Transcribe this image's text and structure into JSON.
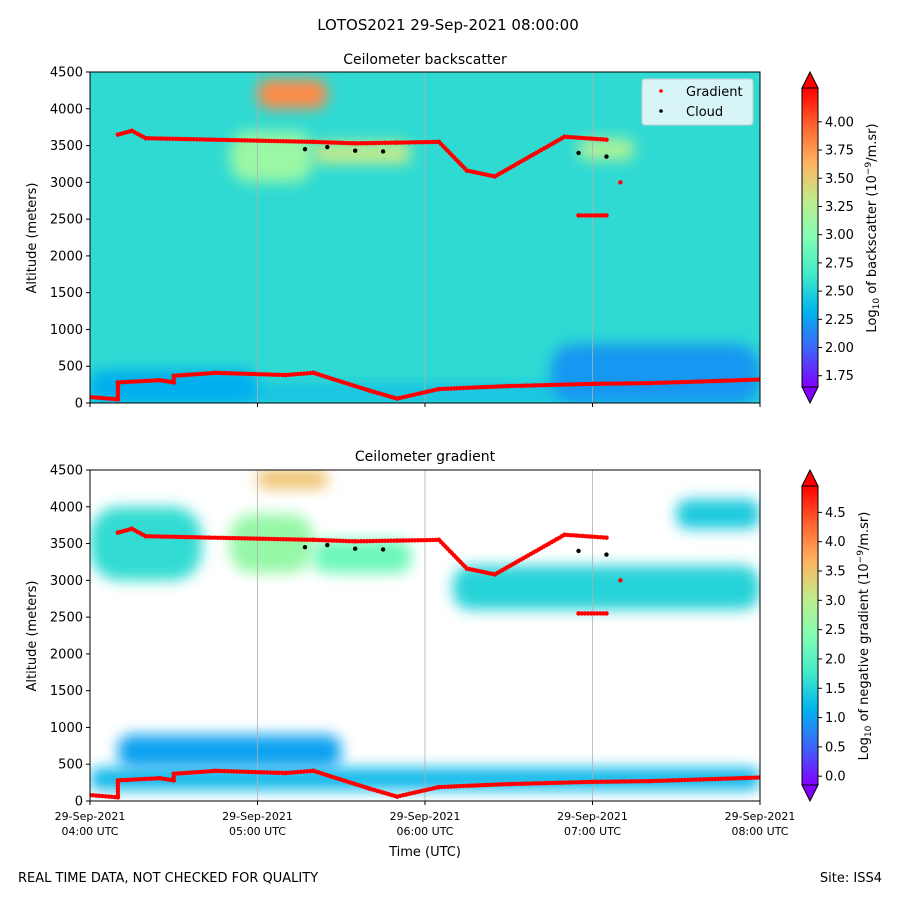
{
  "suptitle": "LOTOS2021 29-Sep-2021 08:00:00",
  "footer_left": "REAL TIME DATA, NOT CHECKED FOR QUALITY",
  "footer_right": "Site: ISS4",
  "colormap": [
    "#8000ff",
    "#4062fa",
    "#01b2ee",
    "#41eac8",
    "#81feb4",
    "#c1eb8c",
    "#ffb360",
    "#ff6230",
    "#ff0000"
  ],
  "chart_data": [
    {
      "type": "heatmap",
      "title": "Ceilometer backscatter",
      "ylabel": "Altitude (meters)",
      "xlabel": "",
      "ylim": [
        0,
        4500
      ],
      "yticks": [
        "0",
        "500",
        "1000",
        "1500",
        "2000",
        "2500",
        "3000",
        "3500",
        "4000",
        "4500"
      ],
      "x_range": [
        "29-Sep-2021 04:00 UTC",
        "29-Sep-2021 08:00 UTC"
      ],
      "vertical_gridlines_at": [
        "05:00",
        "06:00",
        "07:00"
      ],
      "colorbar": {
        "label": "Log10 of backscatter (10^-9/m.sr)",
        "range": [
          1.65,
          4.3
        ],
        "ticks": [
          "1.75",
          "2.00",
          "2.25",
          "2.50",
          "2.75",
          "3.00",
          "3.25",
          "3.50",
          "3.75",
          "4.00"
        ]
      },
      "legend": {
        "placement": "top-right",
        "entries": [
          "Gradient",
          "Cloud"
        ]
      },
      "background_level": 2.55,
      "features": [
        {
          "t_start": "04:00",
          "t_end": "08:00",
          "alt_low": 0,
          "alt_high": 250,
          "value": 2.4
        },
        {
          "t_start": "06:45",
          "t_end": "08:00",
          "alt_low": 0,
          "alt_high": 800,
          "value": 2.2
        },
        {
          "t_start": "04:00",
          "t_end": "05:00",
          "alt_low": 0,
          "alt_high": 450,
          "value": 2.3
        },
        {
          "t_start": "04:50",
          "t_end": "05:20",
          "alt_low": 3000,
          "alt_high": 3700,
          "value": 3.1
        },
        {
          "t_start": "05:00",
          "t_end": "05:25",
          "alt_low": 4000,
          "alt_high": 4400,
          "value": 3.8
        },
        {
          "t_start": "05:20",
          "t_end": "05:55",
          "alt_low": 3250,
          "alt_high": 3550,
          "value": 3.3
        },
        {
          "t_start": "06:55",
          "t_end": "07:15",
          "alt_low": 3300,
          "alt_high": 3600,
          "value": 3.2
        }
      ],
      "gradient_layers": [
        {
          "name": "Gradient",
          "points": [
            [
              "04:00",
              80
            ],
            [
              "04:10",
              50
            ],
            [
              "04:10",
              280
            ],
            [
              "04:25",
              310
            ],
            [
              "04:30",
              280
            ],
            [
              "04:30",
              370
            ],
            [
              "04:45",
              410
            ],
            [
              "05:10",
              380
            ],
            [
              "05:20",
              410
            ],
            [
              "05:40",
              170
            ],
            [
              "05:50",
              60
            ],
            [
              "06:05",
              190
            ],
            [
              "06:30",
              230
            ],
            [
              "07:00",
              260
            ],
            [
              "07:20",
              270
            ],
            [
              "07:45",
              300
            ],
            [
              "08:00",
              320
            ]
          ]
        },
        {
          "name": "Gradient",
          "points": [
            [
              "04:10",
              3650
            ],
            [
              "04:15",
              3700
            ],
            [
              "04:20",
              3600
            ],
            [
              "05:20",
              3550
            ],
            [
              "05:35",
              3530
            ],
            [
              "05:50",
              3540
            ],
            [
              "06:05",
              3550
            ],
            [
              "06:15",
              3160
            ],
            [
              "06:25",
              3080
            ],
            [
              "06:50",
              3620
            ],
            [
              "07:05",
              3580
            ],
            [
              "07:10",
              3000
            ],
            [
              "06:55",
              2550
            ],
            [
              "07:05",
              2550
            ]
          ]
        }
      ],
      "cloud_points": [
        [
          "05:17",
          3450
        ],
        [
          "05:25",
          3480
        ],
        [
          "05:35",
          3430
        ],
        [
          "05:45",
          3420
        ],
        [
          "06:55",
          3400
        ],
        [
          "07:05",
          3350
        ]
      ]
    },
    {
      "type": "heatmap",
      "title": "Ceilometer gradient",
      "ylabel": "Altitude (meters)",
      "xlabel": "Time (UTC)",
      "ylim": [
        0,
        4500
      ],
      "yticks": [
        "0",
        "500",
        "1000",
        "1500",
        "2000",
        "2500",
        "3000",
        "3500",
        "4000",
        "4500"
      ],
      "xticks": [
        {
          "line1": "29-Sep-2021",
          "line2": "04:00 UTC"
        },
        {
          "line1": "29-Sep-2021",
          "line2": "05:00 UTC"
        },
        {
          "line1": "29-Sep-2021",
          "line2": "06:00 UTC"
        },
        {
          "line1": "29-Sep-2021",
          "line2": "07:00 UTC"
        },
        {
          "line1": "29-Sep-2021",
          "line2": "08:00 UTC"
        }
      ],
      "vertical_gridlines_at": [
        "05:00",
        "06:00",
        "07:00"
      ],
      "colorbar": {
        "label": "Log10 of negative gradient (10^-9/m.sr)",
        "range": [
          -0.15,
          4.95
        ],
        "ticks": [
          "0.0",
          "0.5",
          "1.0",
          "1.5",
          "2.0",
          "2.5",
          "3.0",
          "3.5",
          "4.0",
          "4.5"
        ]
      },
      "features": [
        {
          "t_start": "04:00",
          "t_end": "08:00",
          "alt_low": 150,
          "alt_high": 450,
          "value": 1.2
        },
        {
          "t_start": "04:10",
          "t_end": "05:30",
          "alt_low": 450,
          "alt_high": 900,
          "value": 1.0
        },
        {
          "t_start": "04:00",
          "t_end": "04:40",
          "alt_low": 3000,
          "alt_high": 4000,
          "value": 1.6
        },
        {
          "t_start": "04:50",
          "t_end": "05:20",
          "alt_low": 3100,
          "alt_high": 3900,
          "value": 2.6
        },
        {
          "t_start": "05:00",
          "t_end": "05:25",
          "alt_low": 4250,
          "alt_high": 4500,
          "value": 3.5
        },
        {
          "t_start": "05:20",
          "t_end": "05:55",
          "alt_low": 3100,
          "alt_high": 3550,
          "value": 2.2
        },
        {
          "t_start": "06:10",
          "t_end": "08:00",
          "alt_low": 2600,
          "alt_high": 3200,
          "value": 1.5
        },
        {
          "t_start": "07:30",
          "t_end": "08:00",
          "alt_low": 3700,
          "alt_high": 4100,
          "value": 1.4
        }
      ],
      "gradient_layers": [
        {
          "name": "Gradient",
          "points": [
            [
              "04:00",
              80
            ],
            [
              "04:10",
              50
            ],
            [
              "04:10",
              280
            ],
            [
              "04:25",
              310
            ],
            [
              "04:30",
              280
            ],
            [
              "04:30",
              370
            ],
            [
              "04:45",
              410
            ],
            [
              "05:10",
              380
            ],
            [
              "05:20",
              410
            ],
            [
              "05:40",
              170
            ],
            [
              "05:50",
              60
            ],
            [
              "06:05",
              190
            ],
            [
              "06:30",
              230
            ],
            [
              "07:00",
              260
            ],
            [
              "07:20",
              270
            ],
            [
              "07:45",
              300
            ],
            [
              "08:00",
              320
            ]
          ]
        },
        {
          "name": "Gradient",
          "points": [
            [
              "04:10",
              3650
            ],
            [
              "04:15",
              3700
            ],
            [
              "04:20",
              3600
            ],
            [
              "05:20",
              3550
            ],
            [
              "05:35",
              3530
            ],
            [
              "05:50",
              3540
            ],
            [
              "06:05",
              3550
            ],
            [
              "06:15",
              3160
            ],
            [
              "06:25",
              3080
            ],
            [
              "06:50",
              3620
            ],
            [
              "07:05",
              3580
            ],
            [
              "07:10",
              3000
            ],
            [
              "06:55",
              2550
            ],
            [
              "07:05",
              2550
            ]
          ]
        }
      ],
      "cloud_points": [
        [
          "05:17",
          3450
        ],
        [
          "05:25",
          3480
        ],
        [
          "05:35",
          3430
        ],
        [
          "05:45",
          3420
        ],
        [
          "06:55",
          3400
        ],
        [
          "07:05",
          3350
        ]
      ]
    }
  ]
}
